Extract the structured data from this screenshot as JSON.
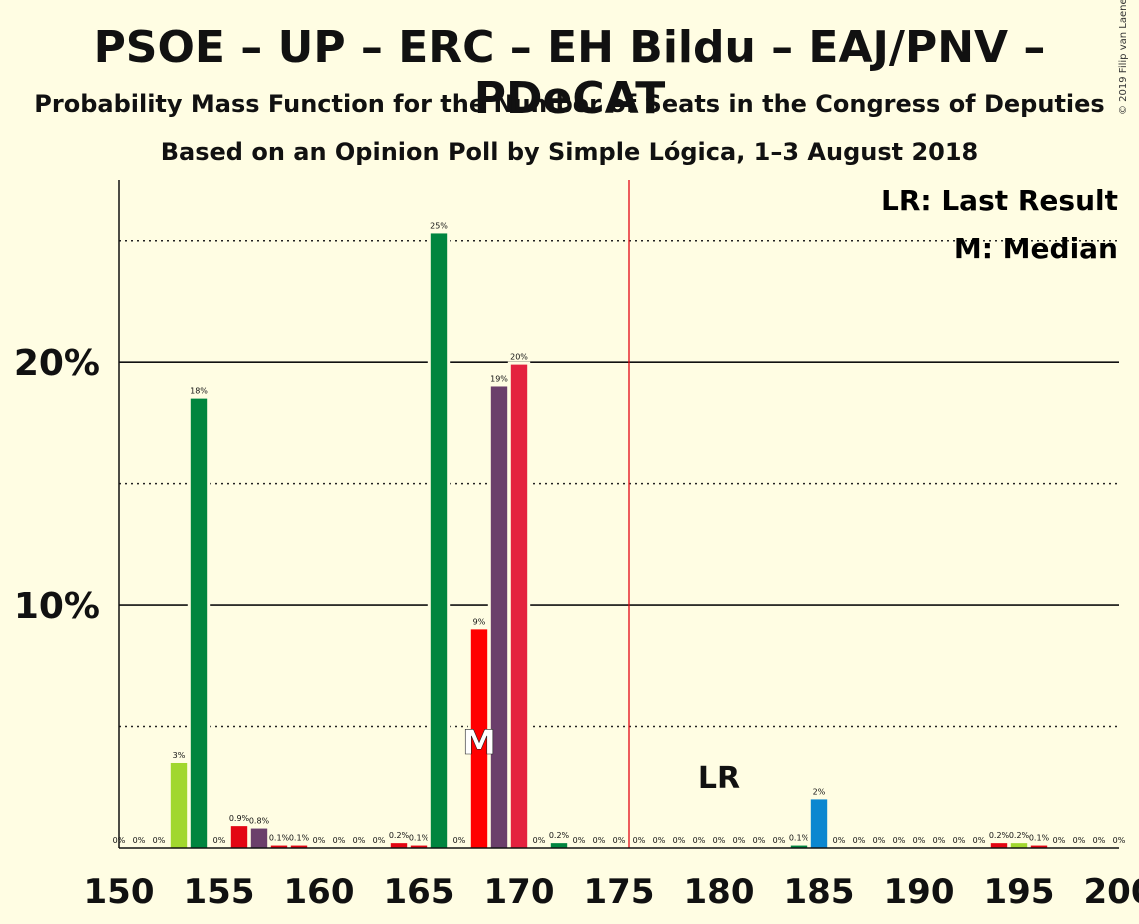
{
  "header": {
    "title": "PSOE – UP – ERC – EH Bildu – EAJ/PNV – PDeCAT",
    "subtitle1": "Probability Mass Function for the Number of Seats in the Congress of Deputies",
    "subtitle2": "Based on an Opinion Poll by Simple Lógica, 1–3 August 2018",
    "copyright": "© 2019 Filip van Laenen"
  },
  "legend": {
    "lr_text": "LR: Last Result",
    "m_text": "M: Median",
    "placement": "top-right"
  },
  "colors": {
    "background": "#fffde3",
    "psoe": "#e30613",
    "up": "#6b3f6b",
    "erc": "#ffb232",
    "bildu": "#a1d72e",
    "pnv": "#00853f",
    "pdecat": "#0b87d0",
    "red_bar": "#ff0000",
    "crimson_bar": "#e4223f",
    "majority_line": "#e30613"
  },
  "chart_data": {
    "type": "bar",
    "x": [
      150,
      151,
      152,
      153,
      154,
      155,
      156,
      157,
      158,
      159,
      160,
      161,
      162,
      163,
      164,
      165,
      166,
      167,
      168,
      169,
      170,
      171,
      172,
      173,
      174,
      175,
      176,
      177,
      178,
      179,
      180,
      181,
      182,
      183,
      184,
      185,
      186,
      187,
      188,
      189,
      190,
      191,
      192,
      193,
      194,
      195,
      196,
      197,
      198,
      199,
      200
    ],
    "values": [
      0,
      0,
      0,
      3.5,
      18.5,
      0,
      0.9,
      0.8,
      0.1,
      0.1,
      0,
      0,
      0,
      0,
      0.2,
      0.1,
      25.3,
      0,
      9,
      19,
      19.9,
      0,
      0.2,
      0,
      0,
      0,
      0,
      0,
      0,
      0,
      0,
      0,
      0,
      0,
      0.1,
      2,
      0,
      0,
      0,
      0,
      0,
      0,
      0,
      0,
      0.2,
      0.2,
      0.1,
      0,
      0,
      0,
      0
    ],
    "labels": [
      "0%",
      "0%",
      "0%",
      "3%",
      "18%",
      "0%",
      "0.9%",
      "0.8%",
      "0.1%",
      "0.1%",
      "0%",
      "0%",
      "0%",
      "0%",
      "0.2%",
      "0.1%",
      "25%",
      "0%",
      "9%",
      "19%",
      "20%",
      "0%",
      "0.2%",
      "0%",
      "0%",
      "0%",
      "0%",
      "0%",
      "0%",
      "0%",
      "0%",
      "0%",
      "0%",
      "0%",
      "0.1%",
      "2%",
      "0%",
      "0%",
      "0%",
      "0%",
      "0%",
      "0%",
      "0%",
      "0%",
      "0.2%",
      "0.2%",
      "0.1%",
      "0%",
      "0%",
      "0%",
      "0%"
    ],
    "bar_colors": [
      "#a1d72e",
      "#a1d72e",
      "#a1d72e",
      "#a1d72e",
      "#00853f",
      "#e30613",
      "#e30613",
      "#6b3f6b",
      "#e30613",
      "#e30613",
      "#e30613",
      "#e30613",
      "#e30613",
      "#e30613",
      "#e30613",
      "#e30613",
      "#00853f",
      "#e30613",
      "#ff0000",
      "#6b3f6b",
      "#e4223f",
      "#e30613",
      "#00853f",
      "#e30613",
      "#e30613",
      "#e30613",
      "#e30613",
      "#e30613",
      "#e30613",
      "#e30613",
      "#e30613",
      "#e30613",
      "#e30613",
      "#e30613",
      "#00853f",
      "#0b87d0",
      "#e30613",
      "#e30613",
      "#e30613",
      "#e30613",
      "#e30613",
      "#e30613",
      "#e30613",
      "#e30613",
      "#e30613",
      "#a1d72e",
      "#e30613",
      "#e30613",
      "#e30613",
      "#e30613",
      "#e30613"
    ],
    "xlim": [
      150,
      200
    ],
    "ylim": [
      0,
      27.5
    ],
    "x_ticks": [
      150,
      155,
      160,
      165,
      170,
      175,
      180,
      185,
      190,
      195,
      200
    ],
    "y_ticks": [
      10,
      20
    ],
    "y_tick_labels": [
      "10%",
      "20%"
    ],
    "solid_gridlines": [
      10,
      20
    ],
    "dotted_gridlines": [
      5,
      15,
      25
    ],
    "majority_line": 176,
    "last_result": {
      "x": 180,
      "label": "LR"
    },
    "median": {
      "x": 168,
      "label": "M"
    }
  }
}
